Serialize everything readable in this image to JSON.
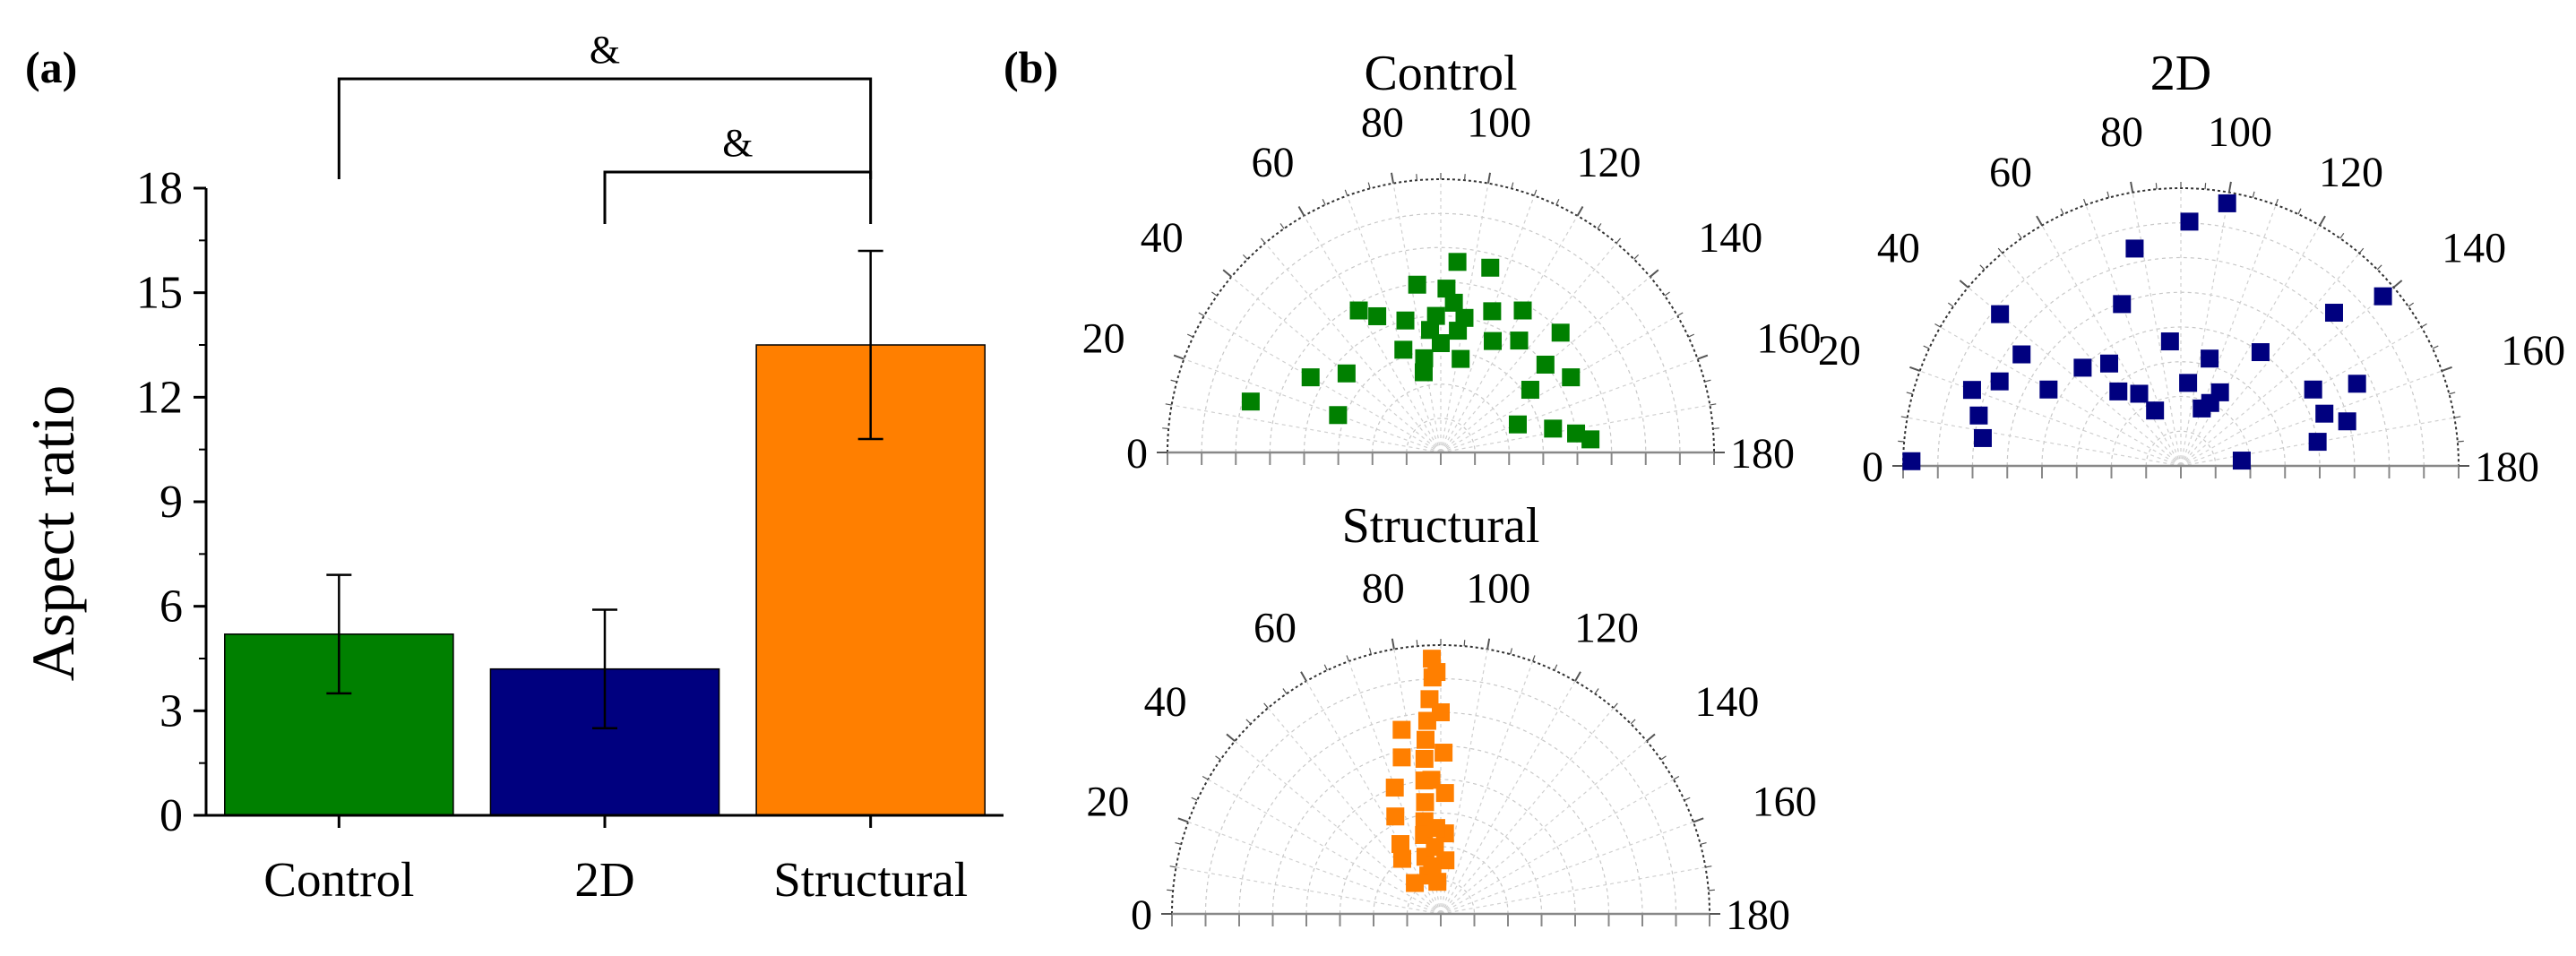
{
  "panel_labels": [
    "(a)",
    "(b)"
  ],
  "significance": [
    {
      "label": "&",
      "from": "Control",
      "to": "Structural"
    },
    {
      "label": "&",
      "from": "2D",
      "to": "Structural"
    }
  ],
  "chart_data": [
    {
      "type": "bar",
      "title": "",
      "xlabel": "",
      "ylabel": "Aspect ratio",
      "ylim": [
        0,
        18
      ],
      "yticks": [
        0,
        3,
        6,
        9,
        12,
        15,
        18
      ],
      "categories": [
        "Control",
        "2D",
        "Structural"
      ],
      "values": [
        5.2,
        4.2,
        13.5
      ],
      "errors": [
        1.7,
        1.7,
        2.7
      ],
      "colors": [
        "#008000",
        "#00007f",
        "#ff7f00"
      ]
    },
    {
      "type": "scatter",
      "subtype": "polar-half",
      "title": "Control",
      "color": "#008000",
      "angle_ticks": [
        0,
        20,
        40,
        60,
        80,
        100,
        120,
        140,
        160,
        180
      ],
      "angle_range": [
        0,
        180
      ],
      "r_range": [
        0,
        1
      ],
      "points": [
        {
          "angle": 175,
          "r": 0.55
        },
        {
          "angle": 172,
          "r": 0.5
        },
        {
          "angle": 168,
          "r": 0.42
        },
        {
          "angle": 140,
          "r": 0.5
        },
        {
          "angle": 120,
          "r": 0.6
        },
        {
          "angle": 110,
          "r": 0.55
        },
        {
          "angle": 105,
          "r": 0.7
        },
        {
          "angle": 100,
          "r": 0.5
        },
        {
          "angle": 95,
          "r": 0.55
        },
        {
          "angle": 92,
          "r": 0.6
        },
        {
          "angle": 90,
          "r": 0.4
        },
        {
          "angle": 88,
          "r": 0.5
        },
        {
          "angle": 85,
          "r": 0.45
        },
        {
          "angle": 82,
          "r": 0.62
        },
        {
          "angle": 80,
          "r": 0.35
        },
        {
          "angle": 78,
          "r": 0.3
        },
        {
          "angle": 75,
          "r": 0.5
        },
        {
          "angle": 70,
          "r": 0.4
        },
        {
          "angle": 65,
          "r": 0.55
        },
        {
          "angle": 60,
          "r": 0.6
        },
        {
          "angle": 40,
          "r": 0.45
        },
        {
          "angle": 30,
          "r": 0.55
        },
        {
          "angle": 20,
          "r": 0.4
        },
        {
          "angle": 15,
          "r": 0.72
        },
        {
          "angle": 95,
          "r": 0.7
        },
        {
          "angle": 98,
          "r": 0.45
        },
        {
          "angle": 102,
          "r": 0.35
        },
        {
          "angle": 115,
          "r": 0.45
        },
        {
          "angle": 125,
          "r": 0.5
        },
        {
          "angle": 135,
          "r": 0.62
        },
        {
          "angle": 145,
          "r": 0.4
        },
        {
          "angle": 150,
          "r": 0.55
        },
        {
          "angle": 160,
          "r": 0.3
        }
      ]
    },
    {
      "type": "scatter",
      "subtype": "polar-half",
      "title": "2D",
      "color": "#00007f",
      "angle_ticks": [
        0,
        20,
        40,
        60,
        80,
        100,
        120,
        140,
        160,
        180
      ],
      "angle_range": [
        0,
        180
      ],
      "r_range": [
        0,
        1
      ],
      "points": [
        {
          "angle": 1,
          "r": 0.97
        },
        {
          "angle": 8,
          "r": 0.72
        },
        {
          "angle": 14,
          "r": 0.75
        },
        {
          "angle": 20,
          "r": 0.8
        },
        {
          "angle": 25,
          "r": 0.72
        },
        {
          "angle": 30,
          "r": 0.55
        },
        {
          "angle": 35,
          "r": 0.7
        },
        {
          "angle": 40,
          "r": 0.85
        },
        {
          "angle": 45,
          "r": 0.5
        },
        {
          "angle": 55,
          "r": 0.45
        },
        {
          "angle": 60,
          "r": 0.3
        },
        {
          "angle": 65,
          "r": 0.22
        },
        {
          "angle": 70,
          "r": 0.62
        },
        {
          "angle": 78,
          "r": 0.8
        },
        {
          "angle": 85,
          "r": 0.45
        },
        {
          "angle": 92,
          "r": 0.88
        },
        {
          "angle": 100,
          "r": 0.96
        },
        {
          "angle": 105,
          "r": 0.4
        },
        {
          "angle": 110,
          "r": 0.22
        },
        {
          "angle": 118,
          "r": 0.3
        },
        {
          "angle": 125,
          "r": 0.5
        },
        {
          "angle": 135,
          "r": 0.78
        },
        {
          "angle": 140,
          "r": 0.95
        },
        {
          "angle": 150,
          "r": 0.55
        },
        {
          "angle": 155,
          "r": 0.7
        },
        {
          "angle": 160,
          "r": 0.55
        },
        {
          "angle": 165,
          "r": 0.62
        },
        {
          "angle": 170,
          "r": 0.5
        },
        {
          "angle": 175,
          "r": 0.22
        },
        {
          "angle": 50,
          "r": 0.35
        },
        {
          "angle": 95,
          "r": 0.3
        },
        {
          "angle": 115,
          "r": 0.25
        }
      ]
    },
    {
      "type": "scatter",
      "subtype": "polar-half",
      "title": "Structural",
      "color": "#ff7f00",
      "angle_ticks": [
        0,
        20,
        40,
        60,
        80,
        100,
        120,
        140,
        160,
        180
      ],
      "angle_range": [
        0,
        180
      ],
      "r_range": [
        0,
        1
      ],
      "points": [
        {
          "angle": 88,
          "r": 0.95
        },
        {
          "angle": 88,
          "r": 0.88
        },
        {
          "angle": 87,
          "r": 0.8
        },
        {
          "angle": 86,
          "r": 0.72
        },
        {
          "angle": 85,
          "r": 0.65
        },
        {
          "angle": 84,
          "r": 0.58
        },
        {
          "angle": 83,
          "r": 0.5
        },
        {
          "angle": 82,
          "r": 0.42
        },
        {
          "angle": 80,
          "r": 0.35
        },
        {
          "angle": 78,
          "r": 0.3
        },
        {
          "angle": 75,
          "r": 0.22
        },
        {
          "angle": 72,
          "r": 0.15
        },
        {
          "angle": 89,
          "r": 0.9
        },
        {
          "angle": 90,
          "r": 0.75
        },
        {
          "angle": 91,
          "r": 0.6
        },
        {
          "angle": 92,
          "r": 0.45
        },
        {
          "angle": 93,
          "r": 0.3
        },
        {
          "angle": 95,
          "r": 0.2
        },
        {
          "angle": 78,
          "r": 0.7
        },
        {
          "angle": 76,
          "r": 0.6
        },
        {
          "angle": 70,
          "r": 0.5
        },
        {
          "angle": 65,
          "r": 0.4
        },
        {
          "angle": 60,
          "r": 0.3
        },
        {
          "angle": 55,
          "r": 0.25
        },
        {
          "angle": 50,
          "r": 0.15
        },
        {
          "angle": 85,
          "r": 0.25
        },
        {
          "angle": 80,
          "r": 0.18
        },
        {
          "angle": 84,
          "r": 0.12
        },
        {
          "angle": 87,
          "r": 0.32
        },
        {
          "angle": 86,
          "r": 0.5
        }
      ]
    }
  ]
}
